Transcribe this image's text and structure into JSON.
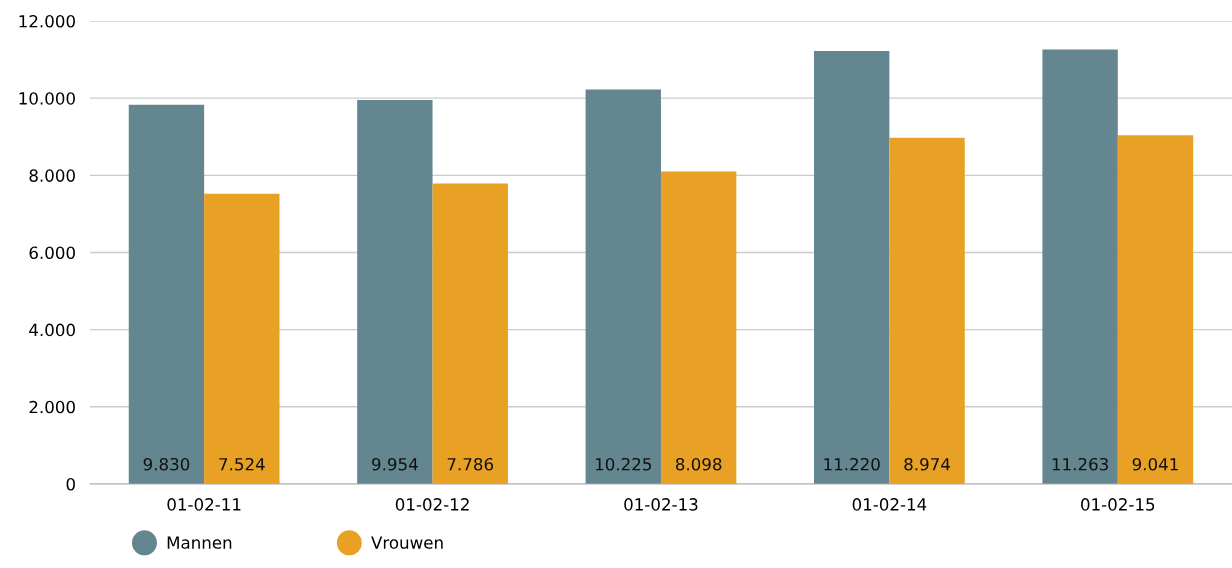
{
  "chart_data": {
    "type": "bar",
    "categories": [
      "01-02-11",
      "01-02-12",
      "01-02-13",
      "01-02-14",
      "01-02-15"
    ],
    "series": [
      {
        "name": "Mannen",
        "color": "#638690",
        "values": [
          9830,
          9954,
          10225,
          11220,
          11263
        ],
        "value_labels": [
          "9.830",
          "9.954",
          "10.225",
          "11.220",
          "11.263"
        ]
      },
      {
        "name": "Vrouwen",
        "color": "#e8a025",
        "values": [
          7524,
          7786,
          8098,
          8974,
          9041
        ],
        "value_labels": [
          "7.524",
          "7.786",
          "8.098",
          "8.974",
          "9.041"
        ]
      }
    ],
    "ylim": [
      0,
      12000
    ],
    "yticks": [
      {
        "value": 0,
        "label": "0"
      },
      {
        "value": 2000,
        "label": "2.000"
      },
      {
        "value": 4000,
        "label": "4.000"
      },
      {
        "value": 6000,
        "label": "6.000"
      },
      {
        "value": 8000,
        "label": "8.000"
      },
      {
        "value": 10000,
        "label": "10.000"
      },
      {
        "value": 12000,
        "label": "12.000"
      }
    ],
    "grid": "y",
    "legend": "bottom left"
  }
}
